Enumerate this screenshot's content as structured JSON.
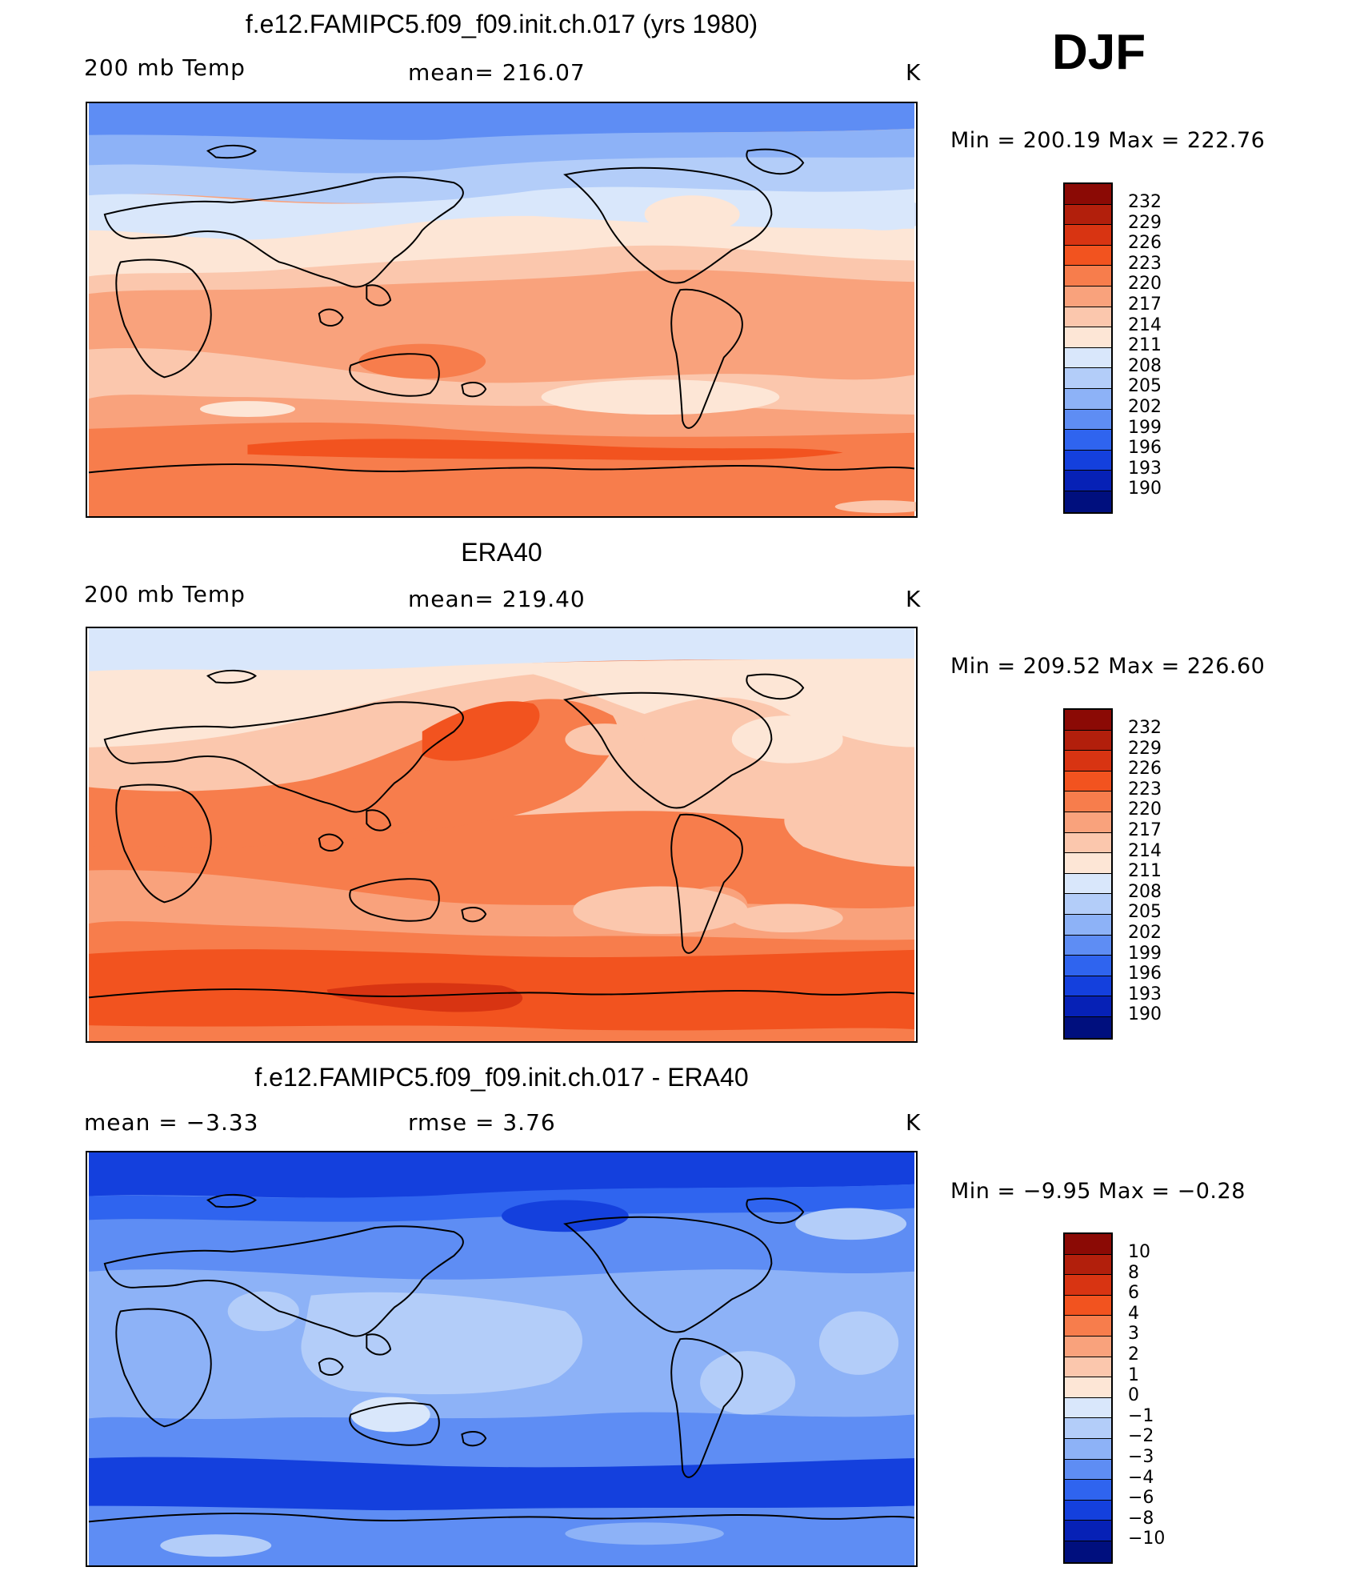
{
  "season": "DJF",
  "panels": [
    {
      "title": "f.e12.FAMIPC5.f09_f09.init.ch.017 (yrs 1980)",
      "left_label": "200 mb Temp",
      "center_label": "mean= 216.07",
      "units": "K",
      "minmax": "Min = 200.19 Max = 222.76",
      "ticks": [
        "232",
        "229",
        "226",
        "223",
        "220",
        "217",
        "214",
        "211",
        "208",
        "205",
        "202",
        "199",
        "196",
        "193",
        "190"
      ],
      "colors": [
        "#8b0a05",
        "#b21f0c",
        "#d83412",
        "#f2531f",
        "#f77d4c",
        "#f9a27c",
        "#fbc7ad",
        "#fde6d6",
        "#d9e7fb",
        "#b3cdf9",
        "#8db2f7",
        "#5e8df4",
        "#2f64ef",
        "#1440dd",
        "#0621b6",
        "#000f7e"
      ]
    },
    {
      "title": "ERA40",
      "left_label": "200 mb Temp",
      "center_label": "mean= 219.40",
      "units": "K",
      "minmax": "Min = 209.52 Max = 226.60",
      "ticks": [
        "232",
        "229",
        "226",
        "223",
        "220",
        "217",
        "214",
        "211",
        "208",
        "205",
        "202",
        "199",
        "196",
        "193",
        "190"
      ],
      "colors": [
        "#8b0a05",
        "#b21f0c",
        "#d83412",
        "#f2531f",
        "#f77d4c",
        "#f9a27c",
        "#fbc7ad",
        "#fde6d6",
        "#d9e7fb",
        "#b3cdf9",
        "#8db2f7",
        "#5e8df4",
        "#2f64ef",
        "#1440dd",
        "#0621b6",
        "#000f7e"
      ]
    },
    {
      "title": "f.e12.FAMIPC5.f09_f09.init.ch.017 - ERA40",
      "left_label": "mean =   −3.33",
      "center_label": "rmse =    3.76",
      "units": "K",
      "minmax": "Min =  −9.95 Max =  −0.28",
      "ticks": [
        "10",
        "8",
        "6",
        "4",
        "3",
        "2",
        "1",
        "0",
        "−1",
        "−2",
        "−3",
        "−4",
        "−6",
        "−8",
        "−10"
      ],
      "colors": [
        "#8b0a05",
        "#b21f0c",
        "#d83412",
        "#f2531f",
        "#f77d4c",
        "#f9a27c",
        "#fbc7ad",
        "#fde6d6",
        "#d9e7fb",
        "#b3cdf9",
        "#8db2f7",
        "#5e8df4",
        "#2f64ef",
        "#1440dd",
        "#0621b6",
        "#000f7e"
      ]
    }
  ]
}
